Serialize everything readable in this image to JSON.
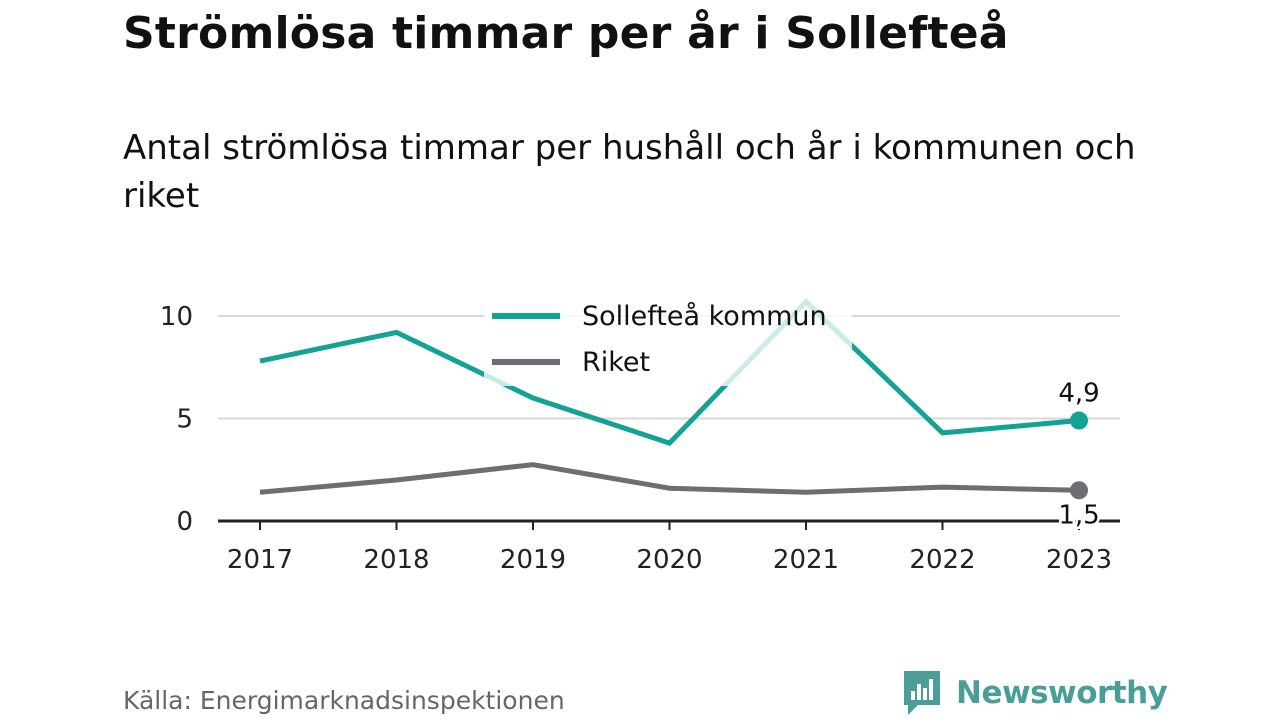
{
  "title": "Strömlösa timmar per år i Sollefteå",
  "subtitle": "Antal strömlösa timmar per hushåll och år i kommunen och riket",
  "source": "Källa: Energimarknadsinspektionen",
  "brand": {
    "name": "Newsworthy",
    "icon": "newsworthy-logo-icon",
    "color": "#4a9e97"
  },
  "chart_data": {
    "type": "line",
    "x": [
      "2017",
      "2018",
      "2019",
      "2020",
      "2021",
      "2022",
      "2023"
    ],
    "ylim": [
      0,
      11
    ],
    "yticks": [
      0,
      5,
      10
    ],
    "grid": true,
    "legend_position": "top-center",
    "series": [
      {
        "name": "Sollefteå kommun",
        "color": "#12a395",
        "values": [
          7.8,
          9.2,
          6.0,
          3.8,
          10.7,
          4.3,
          4.9
        ],
        "end_label": "4,9"
      },
      {
        "name": "Riket",
        "color": "#6e6d74",
        "values": [
          1.4,
          2.0,
          2.75,
          1.6,
          1.4,
          1.65,
          1.5
        ],
        "end_label": "1,5"
      }
    ]
  }
}
